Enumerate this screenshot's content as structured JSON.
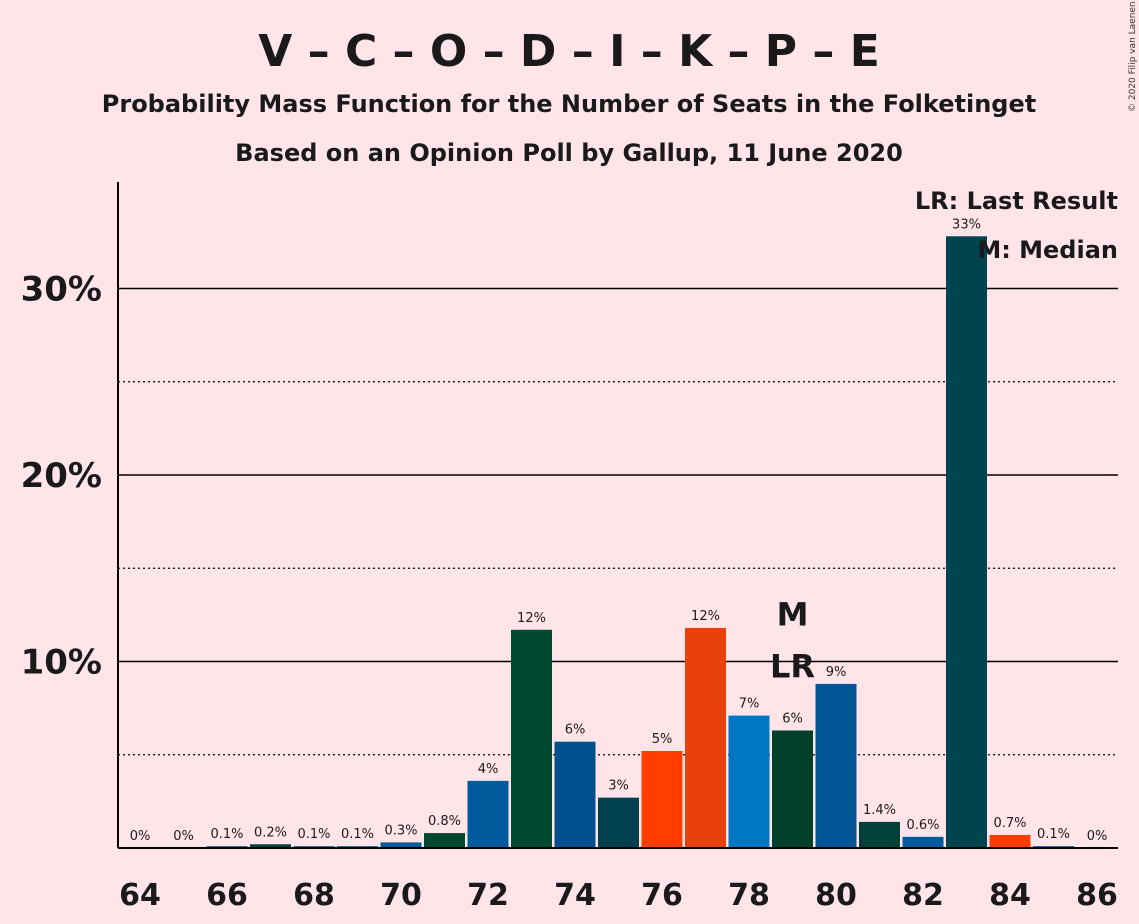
{
  "title": "V – C – O – D – I – K – P – E",
  "subtitle1": "Probability Mass Function for the Number of Seats in the Folketinget",
  "subtitle2": "Based on an Opinion Poll by Gallup, 11 June 2020",
  "copyright": "© 2020 Filip van Laenen",
  "legend": {
    "lr": "LR: Last Result",
    "m": "M: Median"
  },
  "chart_data": {
    "type": "bar",
    "xlabel": "",
    "ylabel": "",
    "ylim": [
      0,
      35
    ],
    "y_ticks": [
      {
        "value": 10,
        "label": "10%"
      },
      {
        "value": 20,
        "label": "20%"
      },
      {
        "value": 30,
        "label": "30%"
      }
    ],
    "y_dotted": [
      5,
      15,
      25
    ],
    "x_ticks": [
      64,
      66,
      68,
      70,
      72,
      74,
      76,
      78,
      80,
      82,
      84,
      86
    ],
    "bars": [
      {
        "seats": 64,
        "value": 0,
        "label": "0%",
        "color": "#005A9B"
      },
      {
        "seats": 65,
        "value": 0,
        "label": "0%",
        "color": "#005A9B"
      },
      {
        "seats": 66,
        "value": 0.1,
        "label": "0.1%",
        "color": "#005A9B"
      },
      {
        "seats": 67,
        "value": 0.2,
        "label": "0.2%",
        "color": "#00413C"
      },
      {
        "seats": 68,
        "value": 0.1,
        "label": "0.1%",
        "color": "#005A9B"
      },
      {
        "seats": 69,
        "value": 0.1,
        "label": "0.1%",
        "color": "#005A9B"
      },
      {
        "seats": 70,
        "value": 0.3,
        "label": "0.3%",
        "color": "#005A9B"
      },
      {
        "seats": 71,
        "value": 0.8,
        "label": "0.8%",
        "color": "#00482F"
      },
      {
        "seats": 72,
        "value": 3.6,
        "label": "4%",
        "color": "#005A9B"
      },
      {
        "seats": 73,
        "value": 11.7,
        "label": "12%",
        "color": "#00482F"
      },
      {
        "seats": 74,
        "value": 5.7,
        "label": "6%",
        "color": "#005090"
      },
      {
        "seats": 75,
        "value": 2.7,
        "label": "3%",
        "color": "#00404F"
      },
      {
        "seats": 76,
        "value": 5.2,
        "label": "5%",
        "color": "#FF3D00"
      },
      {
        "seats": 77,
        "value": 11.8,
        "label": "12%",
        "color": "#E8410C"
      },
      {
        "seats": 78,
        "value": 7.1,
        "label": "7%",
        "color": "#0077C0"
      },
      {
        "seats": 79,
        "value": 6.3,
        "label": "6%",
        "color": "#00402A"
      },
      {
        "seats": 80,
        "value": 8.8,
        "label": "9%",
        "color": "#005596"
      },
      {
        "seats": 81,
        "value": 1.4,
        "label": "1.4%",
        "color": "#00423A"
      },
      {
        "seats": 82,
        "value": 0.6,
        "label": "0.6%",
        "color": "#005A9B"
      },
      {
        "seats": 83,
        "value": 32.8,
        "label": "33%",
        "color": "#004450"
      },
      {
        "seats": 84,
        "value": 0.7,
        "label": "0.7%",
        "color": "#FF3D00"
      },
      {
        "seats": 85,
        "value": 0.1,
        "label": "0.1%",
        "color": "#005A9B"
      },
      {
        "seats": 86,
        "value": 0,
        "label": "0%",
        "color": "#005A9B"
      }
    ],
    "markers": [
      {
        "seats": 79,
        "text": "M",
        "row": 2
      },
      {
        "seats": 79,
        "text": "LR",
        "row": 1
      }
    ]
  }
}
